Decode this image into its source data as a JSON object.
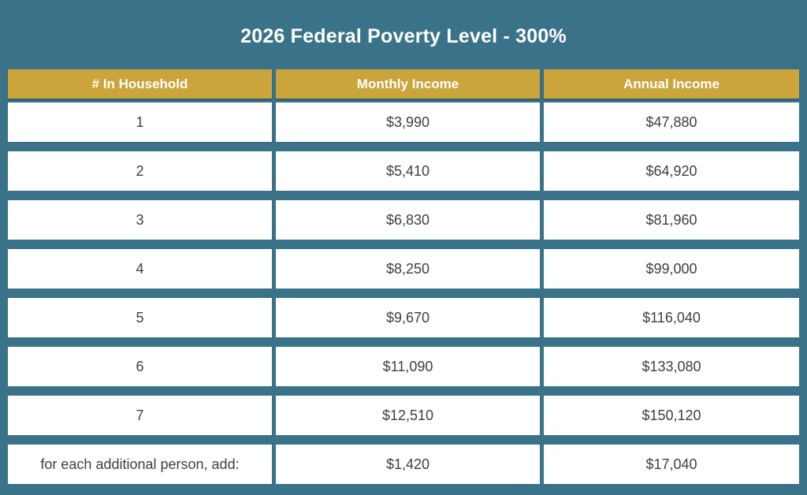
{
  "colors": {
    "background": "#3A7389",
    "header_bg": "#CBA43B",
    "header_text": "#FFFFFF",
    "row_bg": "#FFFFFF",
    "cell_text": "#3F3F3F",
    "title_text": "#FFFFFF"
  },
  "chart_data": {
    "type": "table",
    "title": "2026 Federal Poverty Level - 300%",
    "columns": [
      "# In Household",
      "Monthly Income",
      "Annual Income"
    ],
    "rows": [
      [
        "1",
        "$3,990",
        "$47,880"
      ],
      [
        "2",
        "$5,410",
        "$64,920"
      ],
      [
        "3",
        "$6,830",
        "$81,960"
      ],
      [
        "4",
        "$8,250",
        "$99,000"
      ],
      [
        "5",
        "$9,670",
        "$116,040"
      ],
      [
        "6",
        "$11,090",
        "$133,080"
      ],
      [
        "7",
        "$12,510",
        "$150,120"
      ],
      [
        "for each additional person, add:",
        "$1,420",
        "$17,040"
      ]
    ],
    "notes": {
      "household_values": [
        1,
        2,
        3,
        4,
        5,
        6,
        7
      ],
      "monthly_income_values": [
        3990,
        5410,
        6830,
        8250,
        9670,
        11090,
        12510
      ],
      "annual_income_values": [
        47880,
        64920,
        81960,
        99000,
        116040,
        133080,
        150120
      ],
      "additional_person_monthly": 1420,
      "additional_person_annual": 17040
    }
  }
}
